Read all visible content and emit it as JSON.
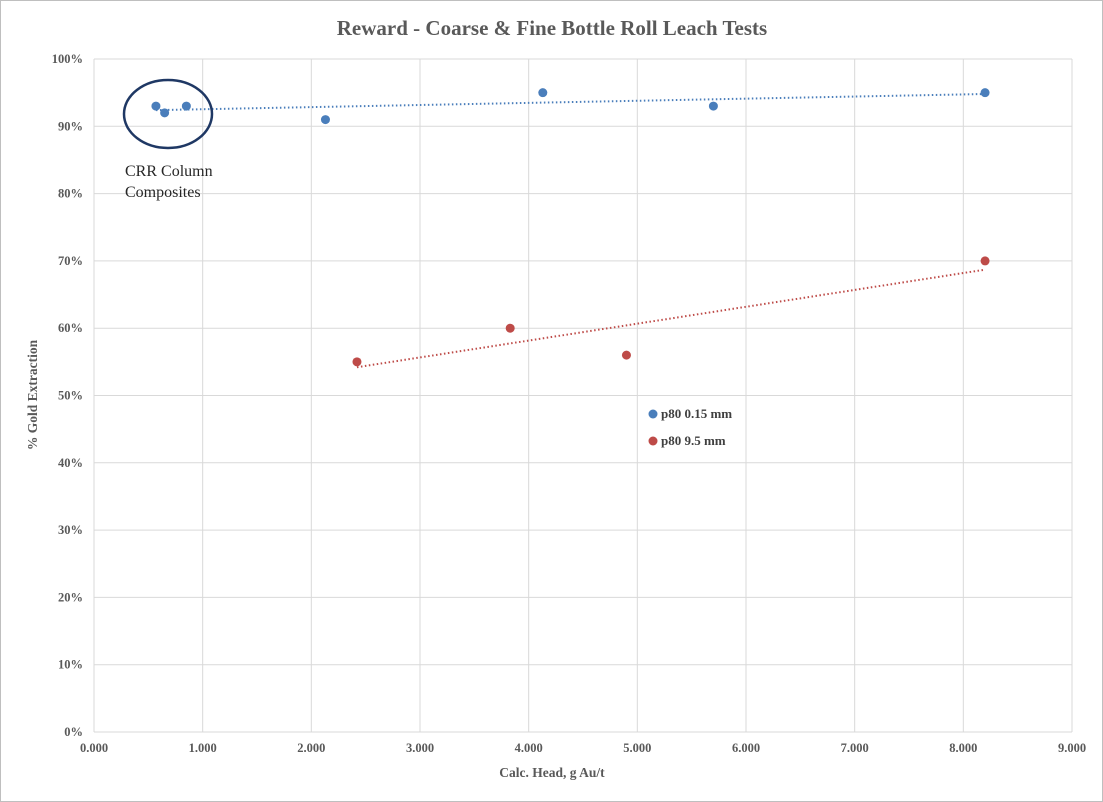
{
  "chart_data": {
    "type": "scatter",
    "title": "Reward  - Coarse & Fine Bottle Roll Leach Tests",
    "xlabel": "Calc. Head, g Au/t",
    "ylabel": "% Gold Extraction",
    "xlim": [
      0,
      9
    ],
    "ylim": [
      0,
      100
    ],
    "x_ticks": [
      0,
      1,
      2,
      3,
      4,
      5,
      6,
      7,
      8,
      9
    ],
    "x_tick_labels": [
      "0.000",
      "1.000",
      "2.000",
      "3.000",
      "4.000",
      "5.000",
      "6.000",
      "7.000",
      "8.000",
      "9.000"
    ],
    "y_ticks": [
      0,
      10,
      20,
      30,
      40,
      50,
      60,
      70,
      80,
      90,
      100
    ],
    "y_tick_labels": [
      "0%",
      "10%",
      "20%",
      "30%",
      "40%",
      "50%",
      "60%",
      "70%",
      "80%",
      "90%",
      "100%"
    ],
    "grid": true,
    "legend_position": "center-right",
    "series": [
      {
        "name": "p80 0.15 mm",
        "color": "#4a7ebb",
        "points": [
          {
            "x": 0.57,
            "y": 93
          },
          {
            "x": 0.65,
            "y": 92
          },
          {
            "x": 0.85,
            "y": 93
          },
          {
            "x": 2.13,
            "y": 91
          },
          {
            "x": 4.13,
            "y": 95
          },
          {
            "x": 5.7,
            "y": 93
          },
          {
            "x": 8.2,
            "y": 95
          }
        ],
        "trendline": {
          "style": "dotted",
          "from": {
            "x": 0.57,
            "y": 92.4
          },
          "to": {
            "x": 8.2,
            "y": 94.8
          }
        }
      },
      {
        "name": "p80 9.5 mm",
        "color": "#be4b48",
        "points": [
          {
            "x": 2.42,
            "y": 55
          },
          {
            "x": 3.83,
            "y": 60
          },
          {
            "x": 4.9,
            "y": 56
          },
          {
            "x": 8.2,
            "y": 70
          }
        ],
        "trendline": {
          "style": "dotted",
          "from": {
            "x": 2.42,
            "y": 54.2
          },
          "to": {
            "x": 8.2,
            "y": 68.7
          }
        }
      }
    ],
    "annotations": [
      {
        "text_lines": [
          "CRR Column",
          "Composites"
        ],
        "encircled_points": "p80 0.15 mm at x 0.57–0.85",
        "circle_color": "#1f3864"
      }
    ]
  }
}
